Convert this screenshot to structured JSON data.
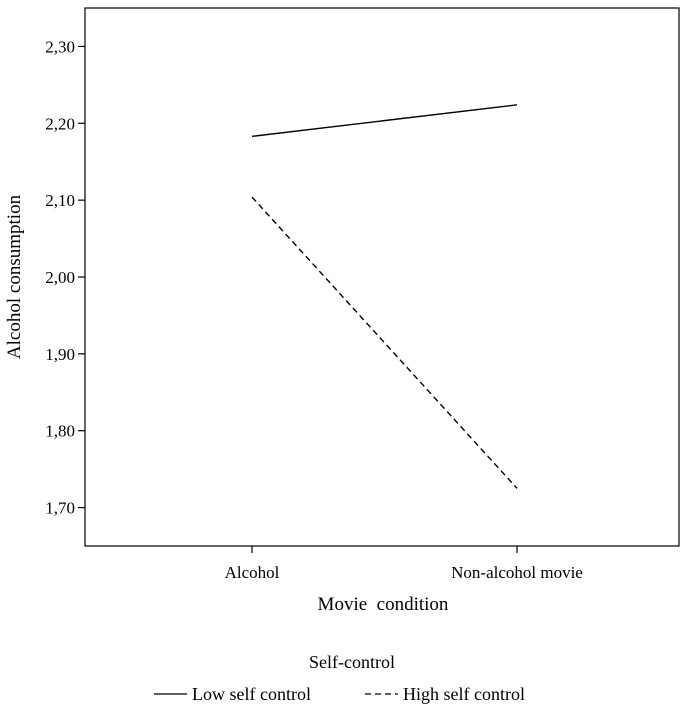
{
  "chart_data": {
    "type": "line",
    "categories": [
      "Alcohol",
      "Non-alcohol movie"
    ],
    "series": [
      {
        "name": "Low self control",
        "values": [
          2.183,
          2.224
        ],
        "style": "solid"
      },
      {
        "name": "High self control",
        "values": [
          2.104,
          1.725
        ],
        "style": "dashed"
      }
    ],
    "xlabel": "Movie  condition",
    "ylabel": "Alcohol consumption",
    "ylim": [
      1.65,
      2.35
    ],
    "yticks": [
      1.7,
      1.8,
      1.9,
      2.0,
      2.1,
      2.2,
      2.3
    ],
    "ytick_labels": [
      "1,70",
      "1,80",
      "1,90",
      "2,00",
      "2,10",
      "2,20",
      "2,30"
    ],
    "legend_title": "Self-control",
    "legend_position": "bottom",
    "grid": false,
    "colors": {
      "line": "#000000",
      "background": "#ffffff"
    }
  }
}
